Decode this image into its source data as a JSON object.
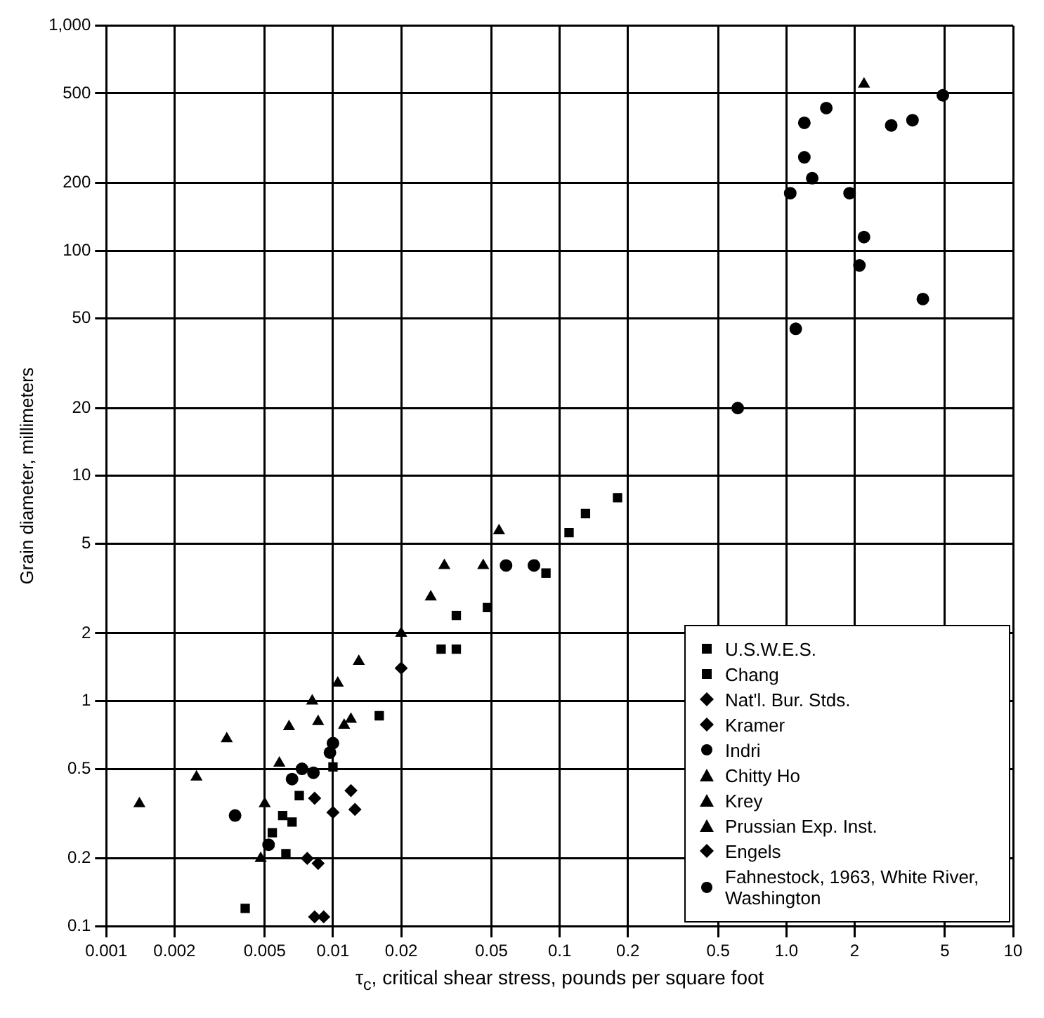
{
  "chart_data": {
    "type": "scatter",
    "xlabel": "τ$_{c}$, critical shear stress, pounds per square foot",
    "ylabel": "Grain diameter, millimeters",
    "log": "xy",
    "grid": true,
    "legend": "bottom right",
    "xlim": [
      0.001,
      10
    ],
    "ylim": [
      0.1,
      1000
    ],
    "xticks": [
      0.001,
      0.002,
      0.005,
      0.01,
      0.02,
      0.05,
      0.1,
      0.2,
      0.5,
      {
        "value": 1,
        "label": "1.0"
      },
      2,
      5,
      10
    ],
    "yticks": [
      0.1,
      0.2,
      0.5,
      1,
      2,
      5,
      10,
      20,
      50,
      100,
      200,
      500,
      {
        "value": 1000,
        "label": "1,000"
      }
    ],
    "series": [
      {
        "name": "U.S.W.E.S.",
        "color": "#000000",
        "marker": "square",
        "x": [
          0.087,
          0.035,
          0.048,
          0.03,
          0.035,
          0.016,
          0.01,
          0.0071,
          0.006,
          0.0066,
          0.0062
        ],
        "values": [
          3.7,
          2.4,
          2.6,
          1.7,
          1.7,
          0.86,
          0.51,
          0.38,
          0.31,
          0.29,
          0.21
        ]
      },
      {
        "name": "Chang",
        "color": "#000000",
        "marker": "square",
        "x": [
          0.18,
          0.13,
          0.11,
          0.0041,
          0.0054
        ],
        "values": [
          8,
          6.8,
          5.6,
          0.12,
          0.26
        ]
      },
      {
        "name": "Nat'l. Bur. Stds.",
        "color": "#000000",
        "marker": "diamond",
        "x": [
          0.0083,
          0.01,
          0.0077,
          0.0086,
          0.0083,
          0.0091
        ],
        "values": [
          0.37,
          0.32,
          0.2,
          0.19,
          0.11,
          0.11
        ]
      },
      {
        "name": "Kramer",
        "color": "#000000",
        "marker": "diamond",
        "x": [
          0.02
        ],
        "values": [
          1.4
        ]
      },
      {
        "name": "Indri",
        "color": "#000000",
        "marker": "circle",
        "x": [
          0.058,
          0.077,
          0.01,
          0.0097,
          0.0073,
          0.0082,
          0.0066,
          0.0037,
          0.0052
        ],
        "values": [
          4,
          4,
          0.65,
          0.59,
          0.5,
          0.48,
          0.45,
          0.31,
          0.23
        ]
      },
      {
        "name": "Chitty Ho",
        "color": "#000000",
        "marker": "triangle",
        "x": [
          0.054,
          0.031,
          0.046,
          0.027,
          0.02,
          0.013,
          0.0081,
          0.0034,
          0.0025,
          0.0014,
          2.2
        ],
        "values": [
          5.7,
          4,
          4,
          2.9,
          2,
          1.5,
          1,
          0.68,
          0.46,
          0.35,
          550
        ]
      },
      {
        "name": "Krey",
        "color": "#000000",
        "marker": "triangle",
        "x": [
          0.0105,
          0.012,
          0.0112,
          0.0086,
          0.0064,
          0.005,
          0.0048
        ],
        "values": [
          1.2,
          0.83,
          0.78,
          0.81,
          0.77,
          0.35,
          0.2
        ]
      },
      {
        "name": "Prussian Exp. Inst.",
        "color": "#000000",
        "marker": "triangle",
        "x": [
          0.0058
        ],
        "values": [
          0.53
        ]
      },
      {
        "name": "Engels",
        "color": "#000000",
        "marker": "diamond",
        "x": [
          0.012,
          0.0125
        ],
        "values": [
          0.4,
          0.33
        ]
      },
      {
        "name": "Fahnestock, 1963, White River, Washington",
        "color": "#000000",
        "marker": "circle",
        "x": [
          4.9,
          1.5,
          1.2,
          2.9,
          3.6,
          1.2,
          1.3,
          1.04,
          1.9,
          2.2,
          2.1,
          4,
          1.1,
          0.61
        ],
        "values": [
          490,
          430,
          370,
          360,
          380,
          260,
          210,
          180,
          180,
          115,
          86,
          61,
          45,
          20
        ]
      }
    ]
  }
}
